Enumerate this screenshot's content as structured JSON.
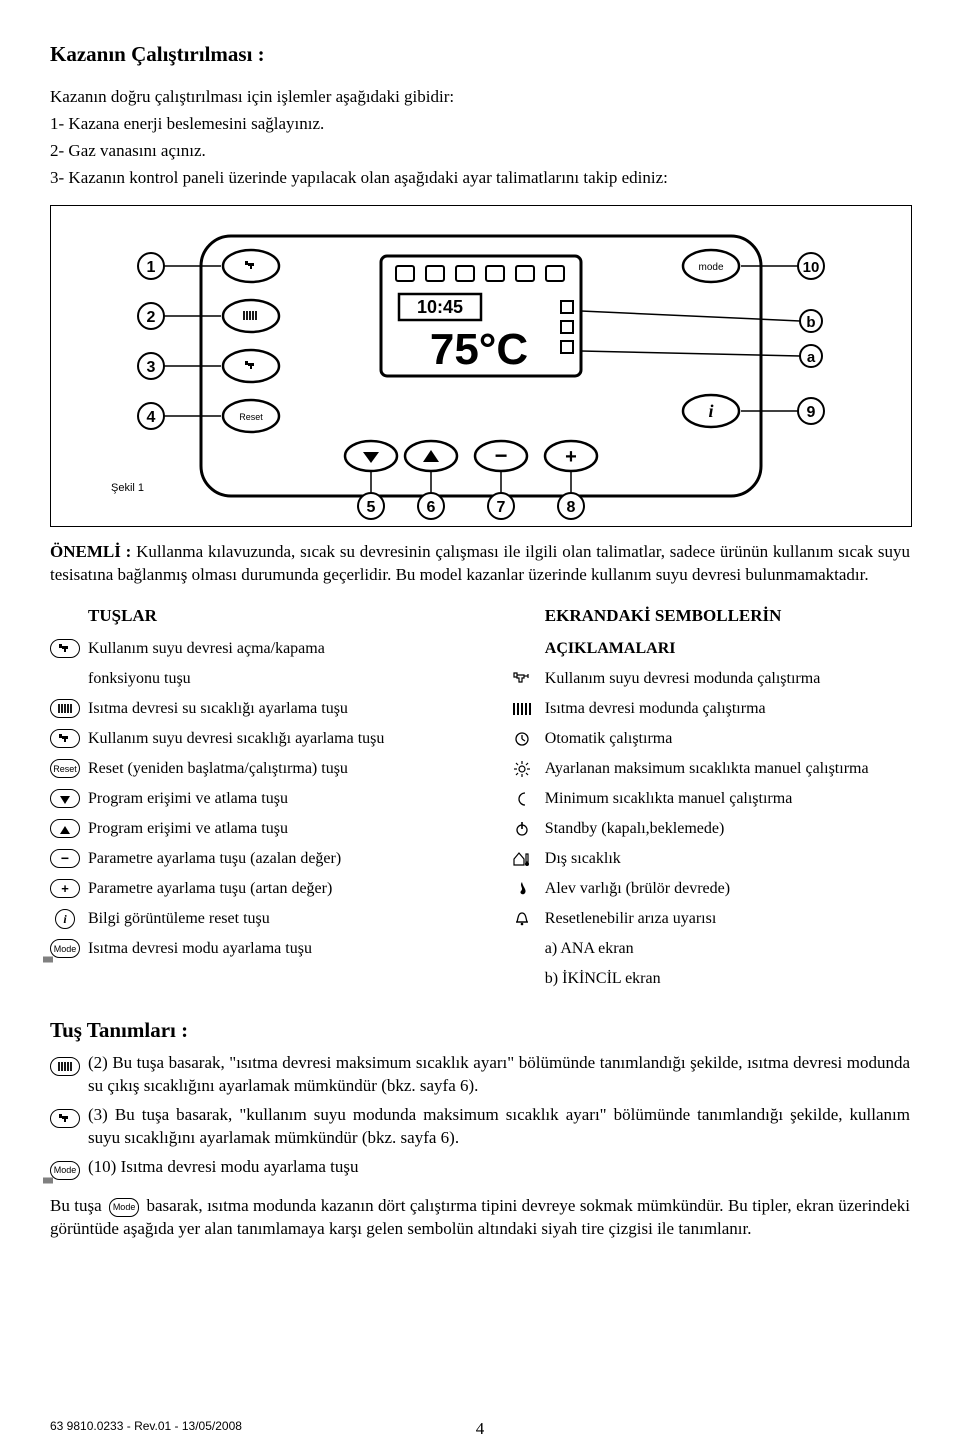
{
  "title": "Kazanın Çalıştırılması :",
  "intro": {
    "line1": "Kazanın doğru çalıştırılması için işlemler aşağıdaki gibidir:",
    "line2": "1- Kazana enerji beslemesini sağlayınız.",
    "line3": "2- Gaz vanasını açınız.",
    "line4": "3- Kazanın kontrol paneli üzerinde yapılacak olan aşağıdaki ayar talimatlarını takip ediniz:"
  },
  "figure": {
    "caption": "Şekil 1",
    "display_time": "10:45",
    "display_temp": "75°C",
    "labels": [
      "1",
      "2",
      "3",
      "4",
      "5",
      "6",
      "7",
      "8",
      "9",
      "10",
      "a",
      "b"
    ]
  },
  "note": {
    "label": "ÖNEMLİ :",
    "text": "Kullanma kılavuzunda, sıcak su devresinin çalışması ile ilgili olan talimatlar, sadece ürünün kullanım sıcak suyu tesisatına bağlanmış olması durumunda geçerlidir. Bu model kazanlar üzerinde kullanım suyu devresi bulunmamaktadır."
  },
  "left_heading": "TUŞLAR",
  "right_heading": "EKRANDAKİ SEMBOLLERİN",
  "right_sub": "AÇIKLAMALARI",
  "left_items": [
    {
      "icon": "tap",
      "text": "Kullanım suyu devresi açma/kapama"
    },
    {
      "icon": "blank",
      "text": "fonksiyonu tuşu"
    },
    {
      "icon": "radiator",
      "text": "Isıtma devresi su sıcaklığı ayarlama tuşu"
    },
    {
      "icon": "tap-set",
      "text": "Kullanım suyu devresi sıcaklığı ayarlama tuşu"
    },
    {
      "icon": "reset",
      "text": "Reset (yeniden başlatma/çalıştırma) tuşu"
    },
    {
      "icon": "down",
      "text": "Program erişimi ve atlama tuşu"
    },
    {
      "icon": "up",
      "text": "Program erişimi ve atlama tuşu"
    },
    {
      "icon": "minus",
      "text": "Parametre ayarlama tuşu (azalan değer)"
    },
    {
      "icon": "plus",
      "text": "Parametre ayarlama tuşu (artan değer)"
    },
    {
      "icon": "info",
      "text": "Bilgi görüntüleme reset tuşu"
    },
    {
      "icon": "mode",
      "text": "Isıtma devresi modu ayarlama tuşu"
    }
  ],
  "right_items": [
    {
      "icon": "tap-sym",
      "text": "Kullanım suyu devresi modunda çalıştırma"
    },
    {
      "icon": "radiator-sym",
      "text": "Isıtma devresi modunda çalıştırma"
    },
    {
      "icon": "clock",
      "text": "Otomatik çalıştırma"
    },
    {
      "icon": "sun",
      "text": "Ayarlanan maksimum sıcaklıkta manuel çalıştırma"
    },
    {
      "icon": "moon",
      "text": "Minimum sıcaklıkta manuel çalıştırma"
    },
    {
      "icon": "standby",
      "text": "Standby (kapalı,beklemede)"
    },
    {
      "icon": "outdoor",
      "text": "Dış sıcaklık"
    },
    {
      "icon": "flame",
      "text": "Alev varlığı (brülör devrede)"
    },
    {
      "icon": "bell",
      "text": "Resetlenebilir arıza uyarısı"
    },
    {
      "icon": "blank",
      "text": "a) ANA ekran"
    },
    {
      "icon": "blank",
      "text": "b) İKİNCİL ekran"
    }
  ],
  "defs_heading": "Tuş Tanımları :",
  "defs": [
    {
      "icon": "radiator",
      "text": "(2) Bu tuşa basarak, \"ısıtma devresi maksimum sıcaklık ayarı\" bölümünde tanımlandığı şekilde, ısıtma devresi modunda  su çıkış sıcaklığını ayarlamak mümkündür (bkz. sayfa 6)."
    },
    {
      "icon": "tap-set",
      "text": "(3) Bu tuşa basarak, \"kullanım suyu modunda maksimum sıcaklık ayarı\" bölümünde tanımlandığı şekilde, kullanım suyu sıcaklığını ayarlamak mümkündür (bkz. sayfa 6)."
    },
    {
      "icon": "mode",
      "text": "(10) Isıtma devresi modu ayarlama tuşu"
    }
  ],
  "body_para": {
    "before": "Bu tuşa ",
    "after": " basarak, ısıtma modunda kazanın dört çalıştırma tipini devreye sokmak mümkündür. Bu tipler, ekran üzerindeki görüntüde aşağıda yer alan tanımlamaya karşı gelen sembolün altındaki siyah tire çizgisi ile tanımlanır.",
    "inline_icon": "Mode"
  },
  "footer": {
    "left": "63 9810.0233  -  Rev.01 - 13/05/2008",
    "page": "4"
  }
}
